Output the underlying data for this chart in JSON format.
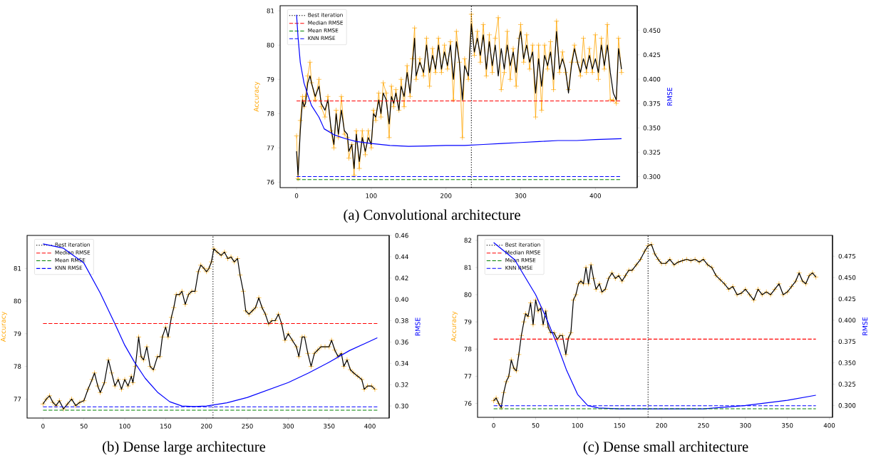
{
  "chart_data": [
    {
      "type": "line",
      "title": "(a) Convolutional architecture",
      "ylabel": "Accuracy",
      "y2label": "RMSE",
      "legend": "top left",
      "xlim": [
        -22,
        456
      ],
      "ylim": [
        75.84,
        81.15
      ],
      "y2lim": [
        0.2887,
        0.4754
      ],
      "xticks": [
        0,
        100,
        200,
        300,
        400
      ],
      "yticks": [
        76,
        77,
        78,
        79,
        80,
        81
      ],
      "y2ticks": [
        {
          "value": 0.3,
          "label": "0.300"
        },
        {
          "value": 0.325,
          "label": "0.325"
        },
        {
          "value": 0.35,
          "label": "0.350"
        },
        {
          "value": 0.375,
          "label": "0.375"
        },
        {
          "value": 0.4,
          "label": "0.400"
        },
        {
          "value": 0.425,
          "label": "0.425"
        },
        {
          "value": 0.45,
          "label": "0.450"
        }
      ],
      "series": [
        {
          "color": "#ffa500",
          "marker": "cross",
          "x": [
            0,
            2,
            5,
            8,
            10,
            12,
            15,
            18,
            20,
            25,
            30,
            33,
            38,
            42,
            46,
            50,
            53,
            56,
            60,
            64,
            68,
            70,
            74,
            77,
            80,
            84,
            88,
            92,
            96,
            100,
            103,
            106,
            110,
            113,
            116,
            120,
            124,
            127,
            130,
            133,
            137,
            140,
            144,
            148,
            152,
            155,
            158,
            160,
            165,
            170,
            174,
            178,
            182,
            186,
            190,
            194,
            198,
            202,
            206,
            210,
            214,
            218,
            222,
            225,
            230,
            234,
            238,
            242,
            246,
            250,
            254,
            258,
            262,
            266,
            270,
            274,
            278,
            282,
            286,
            290,
            294,
            298,
            300,
            304,
            308,
            312,
            316,
            320,
            324,
            328,
            332,
            336,
            340,
            344,
            348,
            352,
            356,
            360,
            364,
            368,
            372,
            376,
            380,
            384,
            388,
            392,
            396,
            400,
            404,
            408,
            412,
            416,
            420,
            424,
            428,
            431,
            435
          ],
          "values": [
            77.35,
            76.1,
            77.8,
            78.5,
            78.2,
            78.5,
            79.1,
            79.5,
            78.9,
            78.4,
            79.0,
            78.2,
            77.9,
            78.5,
            77.5,
            77.0,
            78.1,
            77.3,
            78.5,
            77.4,
            77.3,
            76.7,
            77.1,
            76.2,
            77.5,
            76.4,
            77.5,
            76.8,
            77.5,
            77.0,
            78.1,
            77.8,
            78.6,
            77.9,
            78.9,
            78.6,
            77.3,
            78.8,
            78.2,
            78.7,
            78.1,
            79.0,
            78.2,
            79.4,
            78.5,
            79.6,
            80.5,
            79.0,
            79.6,
            79.1,
            80.2,
            78.8,
            79.9,
            79.2,
            80.2,
            79.2,
            80.0,
            79.3,
            80.1,
            78.4,
            80.4,
            79.5,
            77.3,
            79.6,
            79.0,
            80.9,
            79.7,
            80.4,
            79.5,
            80.6,
            79.1,
            80.3,
            79.2,
            80.2,
            80.8,
            78.7,
            79.2,
            80.4,
            79.0,
            79.9,
            78.8,
            80.2,
            80.6,
            79.5,
            80.3,
            79.3,
            80.0,
            77.9,
            80.0,
            78.1,
            80.0,
            79.3,
            80.1,
            78.7,
            80.7,
            79.2,
            79.8,
            79.2,
            78.7,
            79.5,
            80.0,
            79.5,
            79.1,
            80.2,
            79.2,
            79.9,
            79.2,
            80.3,
            79.0,
            80.2,
            79.3,
            80.6,
            78.4,
            78.4,
            78.3,
            80.2,
            79.2
          ]
        },
        {
          "color": "#000000",
          "x": [
            0,
            2,
            5,
            8,
            10,
            12,
            15,
            18,
            20,
            25,
            30,
            33,
            38,
            42,
            46,
            50,
            53,
            56,
            60,
            64,
            68,
            70,
            74,
            77,
            80,
            84,
            88,
            92,
            96,
            100,
            103,
            106,
            110,
            113,
            116,
            120,
            124,
            127,
            130,
            133,
            137,
            140,
            144,
            148,
            152,
            155,
            158,
            160,
            165,
            170,
            174,
            178,
            182,
            186,
            190,
            194,
            198,
            202,
            206,
            210,
            214,
            218,
            222,
            225,
            230,
            234,
            238,
            242,
            246,
            250,
            254,
            258,
            262,
            266,
            270,
            274,
            278,
            282,
            286,
            290,
            294,
            298,
            300,
            304,
            308,
            312,
            316,
            320,
            324,
            328,
            332,
            336,
            340,
            344,
            348,
            352,
            356,
            360,
            364,
            368,
            372,
            376,
            380,
            384,
            388,
            392,
            396,
            400,
            404,
            408,
            412,
            416,
            420,
            424,
            428,
            431,
            435
          ],
          "values": [
            76.9,
            76.2,
            77.5,
            78.4,
            78.2,
            78.3,
            78.9,
            79.1,
            78.9,
            78.5,
            78.8,
            78.3,
            78.1,
            78.4,
            77.6,
            77.1,
            78.0,
            77.4,
            78.1,
            77.5,
            77.4,
            76.9,
            77.1,
            76.4,
            77.4,
            76.6,
            77.3,
            76.9,
            77.3,
            77.1,
            78.0,
            77.9,
            78.4,
            78.0,
            78.6,
            78.4,
            77.7,
            78.5,
            78.3,
            78.6,
            78.1,
            78.8,
            78.5,
            79.2,
            78.6,
            79.4,
            80.2,
            79.1,
            79.5,
            79.2,
            80.0,
            79.2,
            79.7,
            79.3,
            80.0,
            79.3,
            79.8,
            79.4,
            80.0,
            79.0,
            80.1,
            79.5,
            78.4,
            79.4,
            79.1,
            80.6,
            79.8,
            80.2,
            79.7,
            80.3,
            79.3,
            80.1,
            79.4,
            80.0,
            79.1,
            79.9,
            79.3,
            80.0,
            79.4,
            79.8,
            79.2,
            80.2,
            80.4,
            79.6,
            80.0,
            79.5,
            79.8,
            78.6,
            79.6,
            78.8,
            79.7,
            79.4,
            79.8,
            79.0,
            80.4,
            79.3,
            79.6,
            79.3,
            78.6,
            79.4,
            79.9,
            79.5,
            79.2,
            79.6,
            79.3,
            79.7,
            79.3,
            79.6,
            79.2,
            80.0,
            79.4,
            80.0,
            79.2,
            78.6,
            78.4,
            79.9,
            79.3
          ]
        },
        {
          "color": "#0000ff",
          "axis": "y2",
          "x": [
            0,
            2,
            5,
            10,
            15,
            20,
            30,
            37,
            50,
            65,
            80,
            100,
            125,
            150,
            175,
            200,
            225,
            250,
            275,
            300,
            325,
            350,
            375,
            400,
            435
          ],
          "values": [
            0.466,
            0.443,
            0.417,
            0.396,
            0.384,
            0.373,
            0.361,
            0.349,
            0.343,
            0.339,
            0.336,
            0.334,
            0.332,
            0.331,
            0.3315,
            0.332,
            0.332,
            0.333,
            0.334,
            0.335,
            0.336,
            0.337,
            0.337,
            0.338,
            0.339
          ]
        }
      ],
      "ref_lines": [
        {
          "axis": "x",
          "value": 234,
          "label": "Best iteration",
          "color": "#000000",
          "line_style": "dotted"
        },
        {
          "axis": "y2",
          "value": 0.3777,
          "label": "Median RMSE",
          "color": "#ff0000",
          "line_style": "dashed"
        },
        {
          "axis": "y2",
          "value": 0.2969,
          "label": "Mean RMSE",
          "color": "#008000",
          "line_style": "dashed"
        },
        {
          "axis": "y2",
          "value": 0.3,
          "label": "KNN RMSE",
          "color": "#0000ff",
          "line_style": "dashed"
        }
      ]
    },
    {
      "type": "line",
      "title": "(b) Dense large architecture",
      "ylabel": "Accuracy",
      "y2label": "RMSE",
      "legend": "top left",
      "xlim": [
        -19.5,
        423.5
      ],
      "ylim": [
        76.42,
        82.01
      ],
      "y2lim": [
        0.2887,
        0.46
      ],
      "xticks": [
        0,
        50,
        100,
        150,
        200,
        250,
        300,
        350,
        400
      ],
      "yticks": [
        77,
        78,
        79,
        80,
        81
      ],
      "y2ticks": [
        {
          "value": 0.3,
          "label": "0.30"
        },
        {
          "value": 0.32,
          "label": "0.32"
        },
        {
          "value": 0.34,
          "label": "0.34"
        },
        {
          "value": 0.36,
          "label": "0.36"
        },
        {
          "value": 0.38,
          "label": "0.38"
        },
        {
          "value": 0.4,
          "label": "0.40"
        },
        {
          "value": 0.42,
          "label": "0.42"
        },
        {
          "value": 0.44,
          "label": "0.44"
        },
        {
          "value": 0.46,
          "label": "0.46"
        }
      ],
      "series": [
        {
          "type": "scatter",
          "color": "#ffa500",
          "marker": "cross",
          "x": [
            0,
            4,
            8,
            12,
            16,
            20,
            25,
            30,
            35,
            40,
            45,
            50,
            55,
            60,
            63,
            67,
            70,
            75,
            80,
            84,
            88,
            92,
            96,
            100,
            104,
            108,
            110,
            113,
            117,
            120,
            123,
            127,
            131,
            135,
            140,
            143,
            146,
            150,
            153,
            157,
            160,
            163,
            167,
            170,
            174,
            178,
            182,
            186,
            190,
            193,
            197,
            200,
            203,
            206,
            209,
            213,
            218,
            222,
            226,
            230,
            234,
            238,
            241,
            245,
            248,
            252,
            256,
            260,
            264,
            268,
            272,
            276,
            280,
            284,
            288,
            292,
            296,
            300,
            305,
            310,
            313,
            317,
            320,
            324,
            328,
            332,
            336,
            340,
            345,
            350,
            353,
            357,
            361,
            365,
            368,
            372,
            376,
            380,
            385,
            390,
            393,
            397,
            402,
            406
          ],
          "values": [
            76.85,
            77.0,
            77.1,
            76.9,
            76.8,
            76.95,
            76.7,
            76.85,
            77.0,
            76.8,
            76.9,
            76.95,
            77.3,
            77.6,
            77.8,
            77.4,
            77.2,
            77.5,
            78.2,
            77.8,
            77.4,
            77.6,
            77.3,
            77.6,
            77.4,
            77.7,
            77.5,
            78.0,
            78.9,
            78.3,
            78.2,
            78.6,
            78.0,
            77.9,
            78.3,
            78.3,
            78.9,
            79.2,
            78.9,
            79.5,
            79.8,
            80.2,
            80.2,
            80.3,
            79.9,
            80.2,
            80.3,
            80.3,
            80.9,
            81.1,
            81.0,
            80.9,
            81.0,
            81.2,
            81.6,
            81.5,
            81.4,
            81.5,
            81.3,
            81.35,
            81.2,
            81.3,
            80.8,
            80.3,
            79.7,
            79.6,
            79.7,
            79.8,
            80.1,
            79.8,
            79.6,
            79.3,
            79.4,
            79.4,
            79.6,
            79.3,
            78.8,
            79.0,
            78.8,
            78.6,
            78.3,
            78.9,
            78.9,
            78.4,
            78.0,
            78.4,
            78.5,
            78.6,
            78.6,
            78.6,
            78.8,
            78.5,
            78.3,
            78.4,
            78.0,
            78.2,
            77.9,
            77.8,
            77.7,
            77.6,
            77.3,
            77.4,
            77.4,
            77.3
          ]
        },
        {
          "color": "#000000",
          "x": [
            0,
            4,
            8,
            12,
            16,
            20,
            25,
            30,
            35,
            40,
            45,
            50,
            55,
            60,
            63,
            67,
            70,
            75,
            80,
            84,
            88,
            92,
            96,
            100,
            104,
            108,
            110,
            113,
            117,
            120,
            123,
            127,
            131,
            135,
            140,
            143,
            146,
            150,
            153,
            157,
            160,
            163,
            167,
            170,
            174,
            178,
            182,
            186,
            190,
            193,
            197,
            200,
            203,
            206,
            209,
            213,
            218,
            222,
            226,
            230,
            234,
            238,
            241,
            245,
            248,
            252,
            256,
            260,
            264,
            268,
            272,
            276,
            280,
            284,
            288,
            292,
            296,
            300,
            305,
            310,
            313,
            317,
            320,
            324,
            328,
            332,
            336,
            340,
            345,
            350,
            353,
            357,
            361,
            365,
            368,
            372,
            376,
            380,
            385,
            390,
            393,
            397,
            402,
            406
          ],
          "values": [
            76.85,
            77.0,
            77.1,
            76.9,
            76.8,
            76.95,
            76.7,
            76.85,
            77.0,
            76.8,
            76.9,
            76.95,
            77.3,
            77.6,
            77.8,
            77.4,
            77.2,
            77.5,
            78.2,
            77.8,
            77.4,
            77.6,
            77.3,
            77.6,
            77.4,
            77.7,
            77.5,
            78.0,
            78.9,
            78.3,
            78.2,
            78.6,
            78.0,
            77.9,
            78.3,
            78.3,
            78.9,
            79.2,
            78.9,
            79.5,
            79.8,
            80.2,
            80.2,
            80.3,
            79.9,
            80.2,
            80.3,
            80.3,
            80.9,
            81.1,
            81.0,
            80.9,
            81.0,
            81.2,
            81.6,
            81.5,
            81.4,
            81.5,
            81.3,
            81.35,
            81.2,
            81.3,
            80.8,
            80.3,
            79.7,
            79.6,
            79.7,
            79.8,
            80.1,
            79.8,
            79.6,
            79.3,
            79.4,
            79.4,
            79.6,
            79.3,
            78.8,
            79.0,
            78.8,
            78.6,
            78.3,
            78.9,
            78.9,
            78.4,
            78.0,
            78.4,
            78.5,
            78.6,
            78.6,
            78.6,
            78.8,
            78.5,
            78.3,
            78.4,
            78.0,
            78.2,
            77.9,
            77.8,
            77.7,
            77.6,
            77.3,
            77.4,
            77.4,
            77.3
          ]
        },
        {
          "color": "#0000ff",
          "axis": "y2",
          "x": [
            0,
            25,
            50,
            70,
            88,
            100,
            112,
            125,
            140,
            155,
            170,
            185,
            200,
            225,
            250,
            275,
            300,
            325,
            350,
            375,
            409
          ],
          "values": [
            0.452,
            0.448,
            0.434,
            0.406,
            0.377,
            0.357,
            0.341,
            0.326,
            0.313,
            0.304,
            0.3,
            0.2995,
            0.3,
            0.303,
            0.308,
            0.315,
            0.322,
            0.331,
            0.341,
            0.352,
            0.364
          ]
        }
      ],
      "ref_lines": [
        {
          "axis": "x",
          "value": 208,
          "label": "Best iteration",
          "color": "#000000",
          "line_style": "dotted"
        },
        {
          "axis": "y2",
          "value": 0.3774,
          "label": "Median RMSE",
          "color": "#ff0000",
          "line_style": "dashed"
        },
        {
          "axis": "y2",
          "value": 0.2961,
          "label": "Mean RMSE",
          "color": "#008000",
          "line_style": "dashed"
        },
        {
          "axis": "y2",
          "value": 0.2992,
          "label": "KNN RMSE",
          "color": "#0000ff",
          "line_style": "dashed"
        }
      ]
    },
    {
      "type": "line",
      "title": "(c) Dense small architecture",
      "ylabel": "Accuracy",
      "y2label": "RMSE",
      "legend": "top left",
      "xlim": [
        -19.2,
        403.8
      ],
      "ylim": [
        75.49,
        82.18
      ],
      "y2lim": [
        0.2861,
        0.4994
      ],
      "xticks": [
        0,
        50,
        100,
        150,
        200,
        250,
        300,
        350,
        400
      ],
      "yticks": [
        76,
        77,
        78,
        79,
        80,
        81,
        82
      ],
      "y2ticks": [
        {
          "value": 0.3,
          "label": "0.300"
        },
        {
          "value": 0.325,
          "label": "0.325"
        },
        {
          "value": 0.35,
          "label": "0.350"
        },
        {
          "value": 0.375,
          "label": "0.375"
        },
        {
          "value": 0.4,
          "label": "0.400"
        },
        {
          "value": 0.425,
          "label": "0.425"
        },
        {
          "value": 0.45,
          "label": "0.450"
        },
        {
          "value": 0.475,
          "label": "0.475"
        }
      ],
      "series": [
        {
          "type": "scatter",
          "color": "#ffa500",
          "marker": "cross",
          "x": [
            0,
            3,
            6,
            9,
            12,
            15,
            18,
            21,
            24,
            27,
            30,
            33,
            36,
            38,
            41,
            44,
            47,
            50,
            53,
            56,
            59,
            62,
            65,
            68,
            72,
            76,
            79,
            82,
            86,
            89,
            92,
            95,
            98,
            101,
            104,
            107,
            110,
            113,
            116,
            119,
            122,
            126,
            129,
            133,
            137,
            141,
            145,
            149,
            153,
            157,
            161,
            165,
            170,
            175,
            180,
            184,
            188,
            192,
            196,
            200,
            205,
            210,
            215,
            220,
            225,
            230,
            235,
            240,
            245,
            250,
            255,
            260,
            265,
            270,
            275,
            280,
            285,
            290,
            295,
            300,
            305,
            310,
            315,
            320,
            325,
            330,
            335,
            340,
            345,
            350,
            355,
            360,
            364,
            368,
            372,
            376,
            380,
            384
          ],
          "values": [
            76.1,
            76.2,
            76.0,
            75.85,
            76.4,
            76.8,
            77.0,
            77.6,
            77.3,
            77.2,
            77.8,
            78.5,
            79.0,
            79.3,
            79.2,
            79.7,
            78.9,
            79.8,
            79.4,
            79.5,
            78.9,
            79.4,
            78.8,
            78.6,
            78.6,
            78.35,
            78.5,
            78.5,
            77.8,
            78.4,
            78.6,
            79.8,
            80.0,
            80.4,
            80.5,
            80.4,
            81.0,
            80.4,
            81.1,
            80.6,
            80.2,
            80.4,
            80.1,
            80.2,
            80.6,
            80.8,
            80.6,
            80.7,
            80.5,
            80.7,
            80.9,
            80.9,
            81.1,
            81.3,
            81.6,
            81.8,
            81.85,
            81.5,
            81.3,
            81.15,
            81.15,
            81.3,
            81.1,
            81.2,
            81.25,
            81.3,
            81.25,
            81.3,
            81.2,
            81.3,
            81.1,
            81.0,
            80.7,
            80.55,
            80.4,
            80.2,
            80.3,
            80.0,
            80.05,
            80.2,
            80.0,
            79.8,
            80.2,
            80.0,
            80.1,
            80.0,
            80.2,
            80.4,
            80.0,
            80.1,
            80.3,
            80.5,
            80.8,
            80.5,
            80.4,
            80.7,
            80.8,
            80.65
          ]
        },
        {
          "color": "#000000",
          "x": [
            0,
            3,
            6,
            9,
            12,
            15,
            18,
            21,
            24,
            27,
            30,
            33,
            36,
            38,
            41,
            44,
            47,
            50,
            53,
            56,
            59,
            62,
            65,
            68,
            72,
            76,
            79,
            82,
            86,
            89,
            92,
            95,
            98,
            101,
            104,
            107,
            110,
            113,
            116,
            119,
            122,
            126,
            129,
            133,
            137,
            141,
            145,
            149,
            153,
            157,
            161,
            165,
            170,
            175,
            180,
            184,
            188,
            192,
            196,
            200,
            205,
            210,
            215,
            220,
            225,
            230,
            235,
            240,
            245,
            250,
            255,
            260,
            265,
            270,
            275,
            280,
            285,
            290,
            295,
            300,
            305,
            310,
            315,
            320,
            325,
            330,
            335,
            340,
            345,
            350,
            355,
            360,
            364,
            368,
            372,
            376,
            380,
            384
          ],
          "values": [
            76.1,
            76.2,
            76.0,
            75.85,
            76.4,
            76.8,
            77.0,
            77.6,
            77.3,
            77.2,
            77.8,
            78.5,
            79.0,
            79.3,
            79.2,
            79.7,
            78.9,
            79.8,
            79.4,
            79.5,
            78.9,
            79.4,
            78.8,
            78.6,
            78.6,
            78.35,
            78.5,
            78.5,
            77.8,
            78.4,
            78.6,
            79.8,
            80.0,
            80.4,
            80.5,
            80.4,
            81.0,
            80.4,
            81.1,
            80.6,
            80.2,
            80.4,
            80.1,
            80.2,
            80.6,
            80.8,
            80.6,
            80.7,
            80.5,
            80.7,
            80.9,
            80.9,
            81.1,
            81.3,
            81.6,
            81.8,
            81.85,
            81.5,
            81.3,
            81.15,
            81.15,
            81.3,
            81.1,
            81.2,
            81.25,
            81.3,
            81.25,
            81.3,
            81.2,
            81.3,
            81.1,
            81.0,
            80.7,
            80.55,
            80.4,
            80.2,
            80.3,
            80.0,
            80.05,
            80.2,
            80.0,
            79.8,
            80.2,
            80.0,
            80.1,
            80.0,
            80.2,
            80.4,
            80.0,
            80.1,
            80.3,
            80.5,
            80.8,
            80.5,
            80.4,
            80.7,
            80.8,
            80.65
          ]
        },
        {
          "color": "#0000ff",
          "axis": "y2",
          "x": [
            0,
            25,
            50,
            62,
            75,
            87,
            100,
            112,
            125,
            150,
            200,
            250,
            300,
            350,
            384
          ],
          "values": [
            0.491,
            0.471,
            0.43,
            0.404,
            0.373,
            0.341,
            0.313,
            0.3,
            0.297,
            0.296,
            0.296,
            0.296,
            0.3,
            0.306,
            0.312
          ]
        }
      ],
      "ref_lines": [
        {
          "axis": "x",
          "value": 184,
          "label": "Best iteration",
          "color": "#000000",
          "line_style": "dotted"
        },
        {
          "axis": "y2",
          "value": 0.3778,
          "label": "Median RMSE",
          "color": "#ff0000",
          "line_style": "dashed"
        },
        {
          "axis": "y2",
          "value": 0.2962,
          "label": "Mean RMSE",
          "color": "#008000",
          "line_style": "dashed"
        },
        {
          "axis": "y2",
          "value": 0.2997,
          "label": "KNN RMSE",
          "color": "#0000ff",
          "line_style": "dashed"
        }
      ]
    }
  ]
}
